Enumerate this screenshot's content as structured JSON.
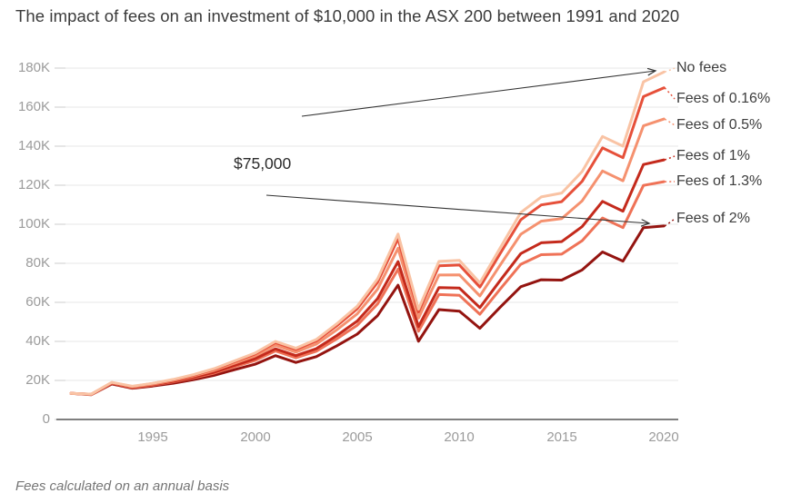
{
  "page": {
    "title": "The impact of fees on an investment of $10,000 in the ASX 200 between 1991 and 2020",
    "footnote": "Fees calculated on an annual basis"
  },
  "annotation": {
    "gap_label": "$75,000"
  },
  "colors": {
    "background": "#ffffff",
    "grid": "#e7e7e7",
    "axis_baseline": "#333333",
    "tick_text": "#9b9b9b",
    "title_text": "#3a3a3a",
    "annotation_arrow": "#333333"
  },
  "chart_data": {
    "type": "line",
    "title": "The impact of fees on an investment of $10,000 in the ASX 200 between 1991 and 2020",
    "x_years": [
      1991,
      1992,
      1993,
      1994,
      1995,
      1996,
      1997,
      1998,
      1999,
      2000,
      2001,
      2002,
      2003,
      2004,
      2005,
      2006,
      2007,
      2008,
      2009,
      2010,
      2011,
      2012,
      2013,
      2014,
      2015,
      2016,
      2017,
      2018,
      2019,
      2020
    ],
    "x_tick_labels": [
      "1995",
      "2000",
      "2005",
      "2010",
      "2015",
      "2020"
    ],
    "y_tick_labels": [
      "0",
      "20K",
      "40K",
      "60K",
      "80K",
      "100K",
      "120K",
      "140K",
      "160K",
      "180K"
    ],
    "y_ticks_k": [
      0,
      20,
      40,
      60,
      80,
      100,
      120,
      140,
      160,
      180
    ],
    "ylim_k": [
      0,
      185
    ],
    "y_units": "K (AUD)",
    "grid": "horizontal",
    "legend_position": "right-of-line-ends",
    "annotations": [
      {
        "text": "$75,000"
      }
    ],
    "series": [
      {
        "name": "No fees",
        "color": "#F9C3A4",
        "values_k": [
          13.4,
          13.0,
          19.0,
          17.0,
          18.5,
          20.5,
          23.0,
          26.0,
          30.0,
          34.0,
          40.0,
          36.5,
          41.0,
          49.0,
          58.0,
          72.0,
          95.0,
          56.5,
          81.0,
          81.5,
          70.0,
          88.0,
          106.0,
          114.0,
          116.0,
          127.0,
          145.0,
          140.0,
          173.0,
          178.0
        ]
      },
      {
        "name": "Fees of 0.16%",
        "color": "#E6503A",
        "values_k": [
          13.4,
          13.0,
          18.9,
          16.9,
          18.4,
          20.3,
          22.8,
          25.7,
          29.6,
          33.5,
          39.4,
          35.9,
          40.2,
          48.0,
          56.7,
          70.3,
          92.6,
          55.0,
          78.7,
          79.1,
          67.8,
          85.1,
          102.3,
          109.9,
          111.6,
          122.0,
          139.1,
          134.1,
          165.4,
          169.9
        ]
      },
      {
        "name": "Fees of 0.5%",
        "color": "#F5916F",
        "values_k": [
          13.4,
          12.9,
          18.8,
          16.7,
          18.1,
          20.0,
          22.3,
          25.1,
          28.8,
          32.5,
          38.0,
          34.5,
          38.6,
          45.9,
          54.1,
          66.8,
          87.7,
          51.9,
          74.0,
          74.1,
          63.3,
          79.2,
          94.9,
          101.6,
          102.9,
          112.0,
          127.3,
          122.3,
          150.4,
          153.9
        ]
      },
      {
        "name": "Fees of 1%",
        "color": "#C42A1C",
        "values_k": [
          13.4,
          12.9,
          18.6,
          16.5,
          17.8,
          19.5,
          21.7,
          24.2,
          27.7,
          31.1,
          36.2,
          32.7,
          36.3,
          43.0,
          50.4,
          61.9,
          80.9,
          47.6,
          67.6,
          67.3,
          57.3,
          71.3,
          85.0,
          90.5,
          91.1,
          98.8,
          111.7,
          106.7,
          130.6,
          133.0
        ]
      },
      {
        "name": "Fees of 1.3%",
        "color": "#EF7257",
        "values_k": [
          13.4,
          12.8,
          18.5,
          16.3,
          17.6,
          19.2,
          21.3,
          23.7,
          27.0,
          30.2,
          35.1,
          31.6,
          35.0,
          41.3,
          48.3,
          59.2,
          77.0,
          45.2,
          64.0,
          63.6,
          53.9,
          66.9,
          79.5,
          84.4,
          84.7,
          91.6,
          103.2,
          98.3,
          119.9,
          121.8
        ]
      },
      {
        "name": "Fees of 2%",
        "color": "#941410",
        "values_k": [
          13.4,
          12.7,
          18.2,
          16.0,
          17.1,
          18.5,
          20.4,
          22.6,
          25.5,
          28.3,
          32.7,
          29.2,
          32.2,
          37.7,
          43.7,
          53.2,
          68.8,
          40.1,
          56.3,
          55.5,
          46.7,
          57.6,
          68.0,
          71.6,
          71.4,
          76.6,
          85.8,
          81.1,
          98.3,
          99.1
        ]
      }
    ]
  }
}
